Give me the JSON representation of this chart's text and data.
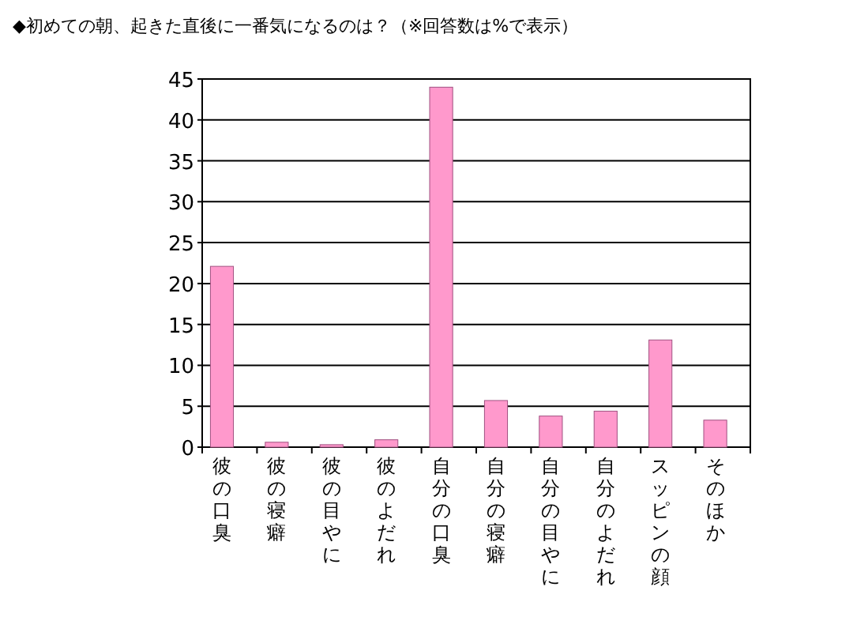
{
  "chart_data": {
    "type": "bar",
    "title": "◆初めての朝、起きた直後に一番気になるのは？（※回答数は%で表示）",
    "categories": [
      "彼の口臭",
      "彼の寝癖",
      "彼の目やに",
      "彼のよだれ",
      "自分の口臭",
      "自分の寝癖",
      "自分の目やに",
      "自分のよだれ",
      "スッピンの顔",
      "そのほか"
    ],
    "values": [
      22.1,
      0.6,
      0.3,
      0.9,
      44.0,
      5.7,
      3.8,
      4.4,
      13.1,
      3.3
    ],
    "color": "#ff99cc",
    "ylim": [
      0,
      45
    ],
    "yticks": [
      0,
      5,
      10,
      15,
      20,
      25,
      30,
      35,
      40,
      45
    ],
    "grid": "y"
  }
}
